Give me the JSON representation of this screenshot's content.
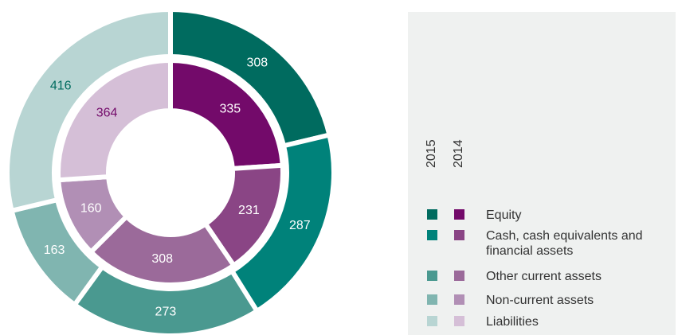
{
  "chart_data": {
    "type": "donut",
    "categories": [
      "Equity",
      "Cash, cash equivalents and financial assets",
      "Other current assets",
      "Non-current assets",
      "Liabilities"
    ],
    "series": [
      {
        "name": "2015",
        "values": [
          308,
          287,
          273,
          163,
          416
        ],
        "colors": [
          "#006b5f",
          "#00827a",
          "#4a9990",
          "#80b5b0",
          "#b8d5d3"
        ]
      },
      {
        "name": "2014",
        "values": [
          335,
          231,
          308,
          160,
          364
        ],
        "colors": [
          "#730a6a",
          "#8a4585",
          "#9b6a9a",
          "#b18fb5",
          "#d5bfd7"
        ]
      }
    ]
  }
}
